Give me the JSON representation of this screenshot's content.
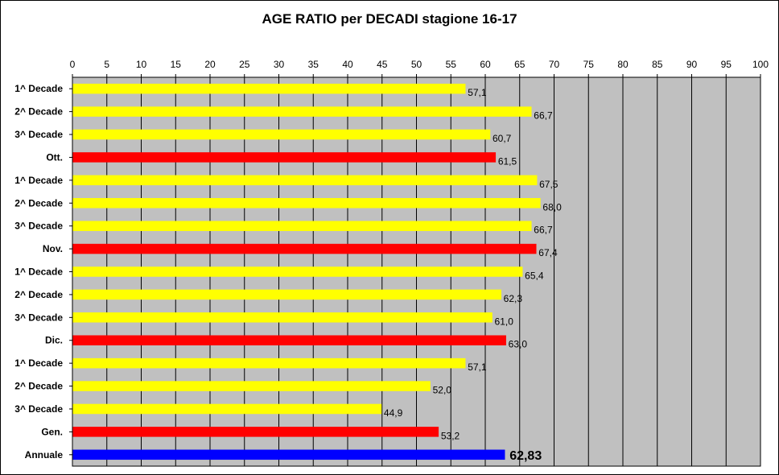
{
  "chart_data": {
    "type": "bar",
    "orientation": "horizontal",
    "title": "AGE RATIO per DECADI stagione 16-17",
    "xlim": [
      0,
      100
    ],
    "xticks": [
      0,
      5,
      10,
      15,
      20,
      25,
      30,
      35,
      40,
      45,
      50,
      55,
      60,
      65,
      70,
      75,
      80,
      85,
      90,
      95,
      100
    ],
    "axis_position": "top",
    "grid": true,
    "colors": {
      "decade": "#FFFF00",
      "month": "#FF0000",
      "annual": "#0000FF",
      "plot_bg": "#C0C0C0"
    },
    "bars": [
      {
        "category": "1^ Decade",
        "value": 57.1,
        "label": "57,1",
        "kind": "decade"
      },
      {
        "category": "2^ Decade",
        "value": 66.7,
        "label": "66,7",
        "kind": "decade"
      },
      {
        "category": "3^ Decade",
        "value": 60.7,
        "label": "60,7",
        "kind": "decade"
      },
      {
        "category": "Ott.",
        "value": 61.5,
        "label": "61,5",
        "kind": "month"
      },
      {
        "category": "1^ Decade",
        "value": 67.5,
        "label": "67,5",
        "kind": "decade"
      },
      {
        "category": "2^ Decade",
        "value": 68.0,
        "label": "68,0",
        "kind": "decade"
      },
      {
        "category": "3^ Decade",
        "value": 66.7,
        "label": "66,7",
        "kind": "decade"
      },
      {
        "category": "Nov.",
        "value": 67.4,
        "label": "67,4",
        "kind": "month"
      },
      {
        "category": "1^ Decade",
        "value": 65.4,
        "label": "65,4",
        "kind": "decade"
      },
      {
        "category": "2^ Decade",
        "value": 62.3,
        "label": "62,3",
        "kind": "decade"
      },
      {
        "category": "3^ Decade",
        "value": 61.0,
        "label": "61,0",
        "kind": "decade"
      },
      {
        "category": "Dic.",
        "value": 63.0,
        "label": "63,0",
        "kind": "month"
      },
      {
        "category": "1^ Decade",
        "value": 57.1,
        "label": "57,1",
        "kind": "decade"
      },
      {
        "category": "2^ Decade",
        "value": 52.0,
        "label": "52,0",
        "kind": "decade"
      },
      {
        "category": "3^ Decade",
        "value": 44.9,
        "label": "44,9",
        "kind": "decade"
      },
      {
        "category": "Gen.",
        "value": 53.2,
        "label": "53,2",
        "kind": "month"
      },
      {
        "category": "Annuale",
        "value": 62.83,
        "label": "62,83",
        "kind": "annual"
      }
    ]
  }
}
